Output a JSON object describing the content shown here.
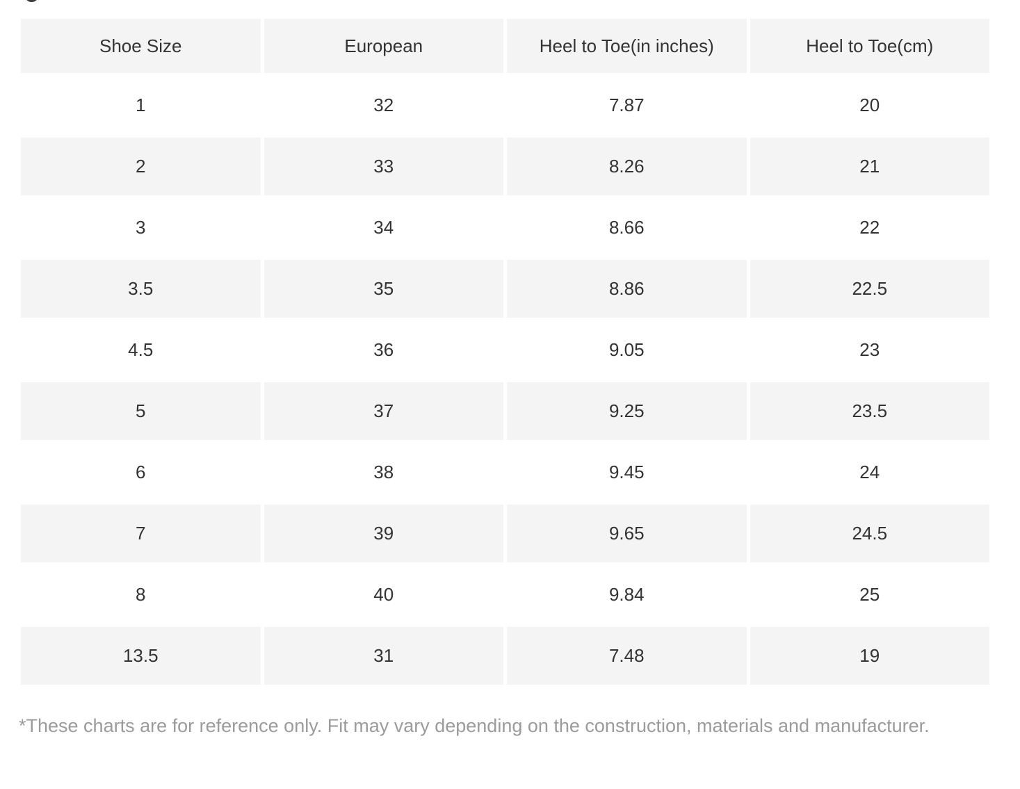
{
  "page": {
    "background_color": "#ffffff",
    "note": "*These charts are for reference only. Fit may vary depending on the construction, materials and manufacturer."
  },
  "size_chart": {
    "columns": [
      "Shoe Size",
      "European",
      "Heel to Toe(in inches)",
      "Heel to Toe(cm)"
    ],
    "rows": [
      [
        "1",
        "32",
        "7.87",
        "20"
      ],
      [
        "2",
        "33",
        "8.26",
        "21"
      ],
      [
        "3",
        "34",
        "8.66",
        "22"
      ],
      [
        "3.5",
        "35",
        "8.86",
        "22.5"
      ],
      [
        "4.5",
        "36",
        "9.05",
        "23"
      ],
      [
        "5",
        "37",
        "9.25",
        "23.5"
      ],
      [
        "6",
        "38",
        "9.45",
        "24"
      ],
      [
        "7",
        "39",
        "9.65",
        "24.5"
      ],
      [
        "8",
        "40",
        "9.84",
        "25"
      ],
      [
        "13.5",
        "31",
        "7.48",
        "19"
      ]
    ],
    "colors": {
      "shaded_cell": "#f4f4f5",
      "plain_cell": "#ffffff",
      "cell_text": "#333333",
      "note_text": "#9b9b9b"
    }
  }
}
